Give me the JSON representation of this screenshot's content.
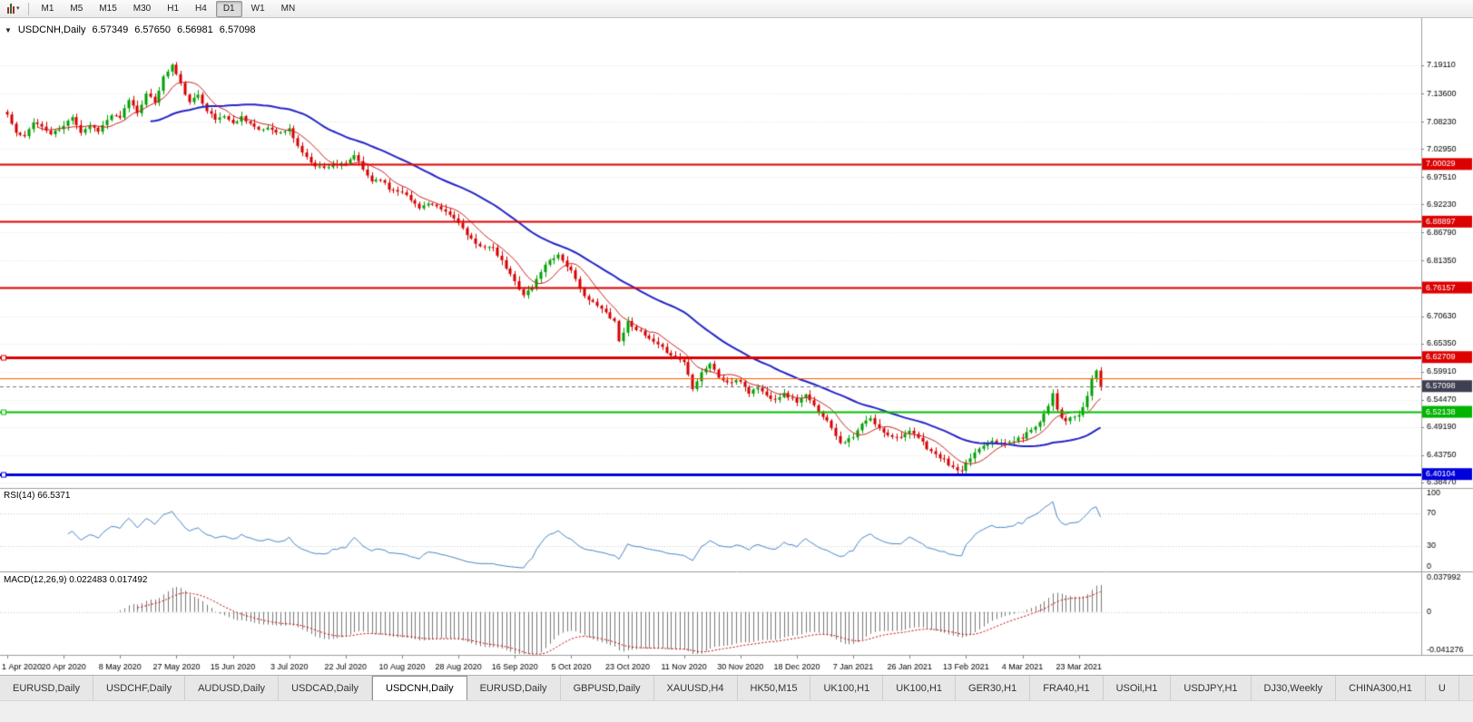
{
  "icons": {
    "one_click_trading": "▼",
    "chart_type_dropdown": "▾"
  },
  "toolbar": {
    "timeframes": [
      "M1",
      "M5",
      "M15",
      "M30",
      "H1",
      "H4",
      "D1",
      "W1",
      "MN"
    ],
    "active_timeframe": "D1"
  },
  "chart": {
    "symbol_title": "USDCNH,Daily",
    "open": "6.57349",
    "high": "6.57650",
    "low": "6.56981",
    "close": "6.57098"
  },
  "chart_data": {
    "type": "candlestick",
    "symbol": "USDCNH",
    "timeframe": "Daily",
    "x_labels": [
      "1 Apr 2020",
      "20 Apr 2020",
      "8 May 2020",
      "27 May 2020",
      "15 Jun 2020",
      "3 Jul 2020",
      "22 Jul 2020",
      "10 Aug 2020",
      "28 Aug 2020",
      "16 Sep 2020",
      "5 Oct 2020",
      "23 Oct 2020",
      "11 Nov 2020",
      "30 Nov 2020",
      "18 Dec 2020",
      "7 Jan 2021",
      "26 Jan 2021",
      "13 Feb 2021",
      "4 Mar 2021",
      "23 Mar 2021"
    ],
    "days_per_label": 13,
    "total_days": 253,
    "price_axis": {
      "min": 6.3742,
      "max": 7.2735,
      "ticks": [
        "7.19110",
        "7.13600",
        "7.08230",
        "7.02950",
        "6.97510",
        "6.92230",
        "6.86790",
        "6.81350",
        "6.75910",
        "6.70630",
        "6.65350",
        "6.59910",
        "6.54470",
        "6.49190",
        "6.43750",
        "6.38470"
      ]
    },
    "up_color": "#00a000",
    "down_color": "#d60000",
    "ma_fast": {
      "period": 8,
      "color": "#cc2222"
    },
    "ma_slow": {
      "period": 34,
      "color": "#2424c8"
    },
    "close_keypoints": [
      [
        0,
        7.096
      ],
      [
        2,
        7.06
      ],
      [
        4,
        7.052
      ],
      [
        6,
        7.083
      ],
      [
        8,
        7.072
      ],
      [
        10,
        7.058
      ],
      [
        13,
        7.073
      ],
      [
        15,
        7.093
      ],
      [
        17,
        7.062
      ],
      [
        19,
        7.075
      ],
      [
        21,
        7.065
      ],
      [
        24,
        7.095
      ],
      [
        26,
        7.088
      ],
      [
        28,
        7.125
      ],
      [
        30,
        7.1
      ],
      [
        32,
        7.135
      ],
      [
        34,
        7.12
      ],
      [
        36,
        7.168
      ],
      [
        38,
        7.192
      ],
      [
        40,
        7.155
      ],
      [
        42,
        7.118
      ],
      [
        44,
        7.135
      ],
      [
        46,
        7.105
      ],
      [
        48,
        7.086
      ],
      [
        50,
        7.094
      ],
      [
        52,
        7.078
      ],
      [
        54,
        7.092
      ],
      [
        56,
        7.079
      ],
      [
        58,
        7.064
      ],
      [
        60,
        7.071
      ],
      [
        63,
        7.06
      ],
      [
        65,
        7.068
      ],
      [
        67,
        7.035
      ],
      [
        69,
        7.012
      ],
      [
        71,
        6.998
      ],
      [
        73,
        6.992
      ],
      [
        75,
        7.001
      ],
      [
        78,
        6.999
      ],
      [
        80,
        7.018
      ],
      [
        82,
        6.989
      ],
      [
        84,
        6.968
      ],
      [
        86,
        6.972
      ],
      [
        88,
        6.952
      ],
      [
        91,
        6.948
      ],
      [
        93,
        6.93
      ],
      [
        95,
        6.917
      ],
      [
        97,
        6.923
      ],
      [
        99,
        6.916
      ],
      [
        101,
        6.908
      ],
      [
        104,
        6.889
      ],
      [
        106,
        6.862
      ],
      [
        108,
        6.845
      ],
      [
        110,
        6.842
      ],
      [
        112,
        6.836
      ],
      [
        114,
        6.812
      ],
      [
        117,
        6.773
      ],
      [
        119,
        6.748
      ],
      [
        121,
        6.762
      ],
      [
        123,
        6.793
      ],
      [
        125,
        6.816
      ],
      [
        127,
        6.825
      ],
      [
        130,
        6.793
      ],
      [
        132,
        6.758
      ],
      [
        134,
        6.738
      ],
      [
        136,
        6.726
      ],
      [
        138,
        6.713
      ],
      [
        140,
        6.697
      ],
      [
        141,
        6.658
      ],
      [
        143,
        6.695
      ],
      [
        145,
        6.682
      ],
      [
        147,
        6.668
      ],
      [
        149,
        6.655
      ],
      [
        151,
        6.644
      ],
      [
        153,
        6.632
      ],
      [
        156,
        6.618
      ],
      [
        158,
        6.568
      ],
      [
        160,
        6.598
      ],
      [
        162,
        6.615
      ],
      [
        164,
        6.588
      ],
      [
        166,
        6.578
      ],
      [
        169,
        6.581
      ],
      [
        171,
        6.558
      ],
      [
        173,
        6.569
      ],
      [
        175,
        6.552
      ],
      [
        177,
        6.547
      ],
      [
        179,
        6.556
      ],
      [
        182,
        6.541
      ],
      [
        184,
        6.553
      ],
      [
        186,
        6.532
      ],
      [
        188,
        6.514
      ],
      [
        190,
        6.492
      ],
      [
        192,
        6.462
      ],
      [
        195,
        6.471
      ],
      [
        197,
        6.498
      ],
      [
        199,
        6.508
      ],
      [
        201,
        6.488
      ],
      [
        203,
        6.478
      ],
      [
        205,
        6.472
      ],
      [
        208,
        6.482
      ],
      [
        210,
        6.471
      ],
      [
        212,
        6.452
      ],
      [
        214,
        6.438
      ],
      [
        216,
        6.428
      ],
      [
        218,
        6.412
      ],
      [
        220,
        6.405
      ],
      [
        221,
        6.421
      ],
      [
        223,
        6.443
      ],
      [
        225,
        6.458
      ],
      [
        227,
        6.468
      ],
      [
        229,
        6.459
      ],
      [
        231,
        6.463
      ],
      [
        234,
        6.472
      ],
      [
        236,
        6.488
      ],
      [
        238,
        6.502
      ],
      [
        240,
        6.535
      ],
      [
        241,
        6.558
      ],
      [
        242,
        6.528
      ],
      [
        243,
        6.507
      ],
      [
        244,
        6.503
      ],
      [
        245,
        6.511
      ],
      [
        246,
        6.509
      ],
      [
        247,
        6.516
      ],
      [
        248,
        6.53
      ],
      [
        249,
        6.552
      ],
      [
        250,
        6.588
      ],
      [
        251,
        6.601
      ],
      [
        252,
        6.57098
      ]
    ],
    "levels": [
      {
        "price": 7.00029,
        "label": "7.00029",
        "color": "#dd0000",
        "width": 2,
        "label_bg": "#dd0000"
      },
      {
        "price": 6.88897,
        "label": "6.88897",
        "color": "#dd0000",
        "width": 2,
        "label_bg": "#dd0000"
      },
      {
        "price": 6.76157,
        "label": "6.76157",
        "color": "#dd0000",
        "width": 2,
        "label_bg": "#dd0000"
      },
      {
        "price": 6.62709,
        "label": "6.62709",
        "color": "#dd0000",
        "width": 3,
        "label_bg": "#dd0000",
        "handle": true
      },
      {
        "price": 6.586,
        "label": "",
        "color": "#ff5a00",
        "width": 1
      },
      {
        "price": 6.57098,
        "label": "6.57098",
        "color": "#777777",
        "width": 1,
        "dash": true,
        "label_bg": "#3f3f52"
      },
      {
        "price": 6.52138,
        "label": "6.52138",
        "color": "#00c000",
        "width": 2,
        "label_bg": "#00b400",
        "handle": true
      },
      {
        "price": 6.40104,
        "label": "6.40104",
        "color": "#0000dd",
        "width": 3,
        "label_bg": "#0000dd",
        "handle": true
      }
    ],
    "rsi": {
      "label": "RSI(14) 66.5371",
      "period": 14,
      "last": 66.5371,
      "axis_ticks": [
        "100",
        "70",
        "30",
        "0"
      ],
      "axis_values": [
        100,
        70,
        30,
        0
      ],
      "guide_levels": [
        70,
        30
      ],
      "color": "#4a86c8"
    },
    "macd": {
      "label": "MACD(12,26,9) 0.022483 0.017492",
      "fast": 12,
      "slow": 26,
      "signal": 9,
      "main_last": 0.022483,
      "signal_last": 0.017492,
      "axis_labels": [
        "0.037992",
        "0",
        "-0.041276"
      ],
      "axis_values": [
        0.037992,
        0,
        -0.041276
      ],
      "hist_color": "#787878",
      "signal_color": "#cc0000"
    }
  },
  "tabs": {
    "items": [
      {
        "label": "EURUSD,Daily"
      },
      {
        "label": "USDCHF,Daily"
      },
      {
        "label": "AUDUSD,Daily"
      },
      {
        "label": "USDCAD,Daily"
      },
      {
        "label": "USDCNH,Daily",
        "active": true
      },
      {
        "label": "EURUSD,Daily"
      },
      {
        "label": "GBPUSD,Daily"
      },
      {
        "label": "XAUUSD,H4"
      },
      {
        "label": "HK50,M15"
      },
      {
        "label": "UK100,H1"
      },
      {
        "label": "UK100,H1"
      },
      {
        "label": "GER30,H1"
      },
      {
        "label": "FRA40,H1"
      },
      {
        "label": "USOil,H1"
      },
      {
        "label": "USDJPY,H1"
      },
      {
        "label": "DJ30,Weekly"
      },
      {
        "label": "CHINA300,H1"
      },
      {
        "label": "U"
      }
    ]
  }
}
